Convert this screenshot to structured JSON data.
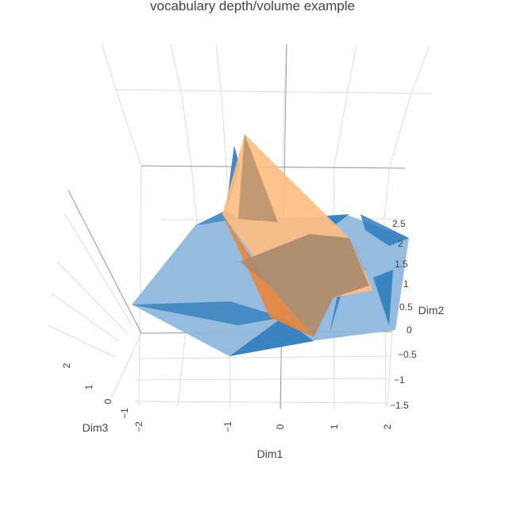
{
  "chart_data": {
    "type": "mesh3d",
    "title": "vocabulary depth/volume example",
    "axes": {
      "x": {
        "label": "Dim1",
        "ticks": [
          "−2",
          "−1",
          "0",
          "1",
          "2"
        ]
      },
      "y": {
        "label": "Dim2",
        "ticks": [
          "−1.5",
          "−1",
          "−0.5",
          "0",
          "0.5",
          "1",
          "1.5",
          "2",
          "2.5"
        ]
      },
      "z": {
        "label": "Dim3",
        "ticks": [
          "−1",
          "0",
          "1",
          "2"
        ]
      }
    },
    "grid": true,
    "series": [
      {
        "color": "#1f77b4",
        "opacity": 0.5
      },
      {
        "color": "#ff7f0e",
        "opacity": 0.5
      }
    ]
  }
}
